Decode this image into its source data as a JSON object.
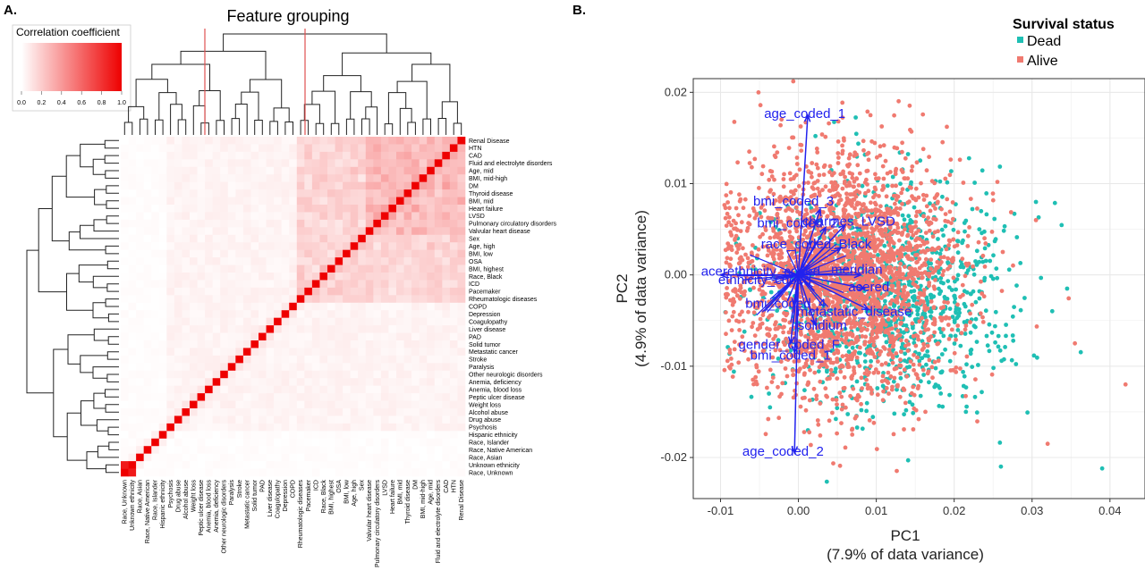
{
  "colors": {
    "heat_low": "#ffffff",
    "heat_high": "#ee0000",
    "dead": "#1fbfb4",
    "alive": "#f07a70",
    "vector": "#2222ee",
    "grid": "#e8e8e8",
    "panel_border": "#333333"
  },
  "chart_data": [
    {
      "panel": "A.",
      "type": "heatmap",
      "title": "Feature grouping",
      "colorbar": {
        "title": "Correlation coefficient",
        "ticks": [
          "0.0",
          "0.2",
          "0.4",
          "0.6",
          "0.8",
          "1.0"
        ],
        "range": [
          0,
          1
        ]
      },
      "row_labels": [
        "Renal Disease",
        "HTN",
        "CAD",
        "Fluid and electrolyte disorders",
        "Age, mid",
        "BMI, mid-high",
        "DM",
        "Thyroid disease",
        "BMI, mid",
        "Heart failure",
        "LVSD",
        "Pulmonary circulatory disorders",
        "Valvular heart disease",
        "Sex",
        "Age, high",
        "BMI, low",
        "OSA",
        "BMI, highest",
        "Race, Black",
        "ICD",
        "Pacemaker",
        "Rheumatologic diseases",
        "COPD",
        "Depression",
        "Coagulopathy",
        "Liver disease",
        "PAD",
        "Solid tumor",
        "Metastatic cancer",
        "Stroke",
        "Paralysis",
        "Other neurologic disorders",
        "Anemia, deficiency",
        "Anemia, blood loss",
        "Peptic ulcer disease",
        "Weight loss",
        "Alcohol abuse",
        "Drug abuse",
        "Psychosis",
        "Hispanic ethnicity",
        "Race, Islander",
        "Race, Native American",
        "Race, Asian",
        "Unknown ethnicity",
        "Race, Unknown"
      ],
      "col_labels": [
        "Race, Unknown",
        "Unknown ethnicity",
        "Race, Asian",
        "Race, Native American",
        "Race, Islander",
        "Hispanic ethnicity",
        "Psychosis",
        "Drug abuse",
        "Alcohol abuse",
        "Weight loss",
        "Peptic ulcer disease",
        "Anemia, blood loss",
        "Anemia, deficiency",
        "Other neurologic disorders",
        "Paralysis",
        "Stroke",
        "Metastatic cancer",
        "Solid tumor",
        "PAD",
        "Liver disease",
        "Coagulopathy",
        "Depression",
        "COPD",
        "Rheumatologic diseases",
        "Pacemaker",
        "ICD",
        "Race, Black",
        "BMI, highest",
        "OSA",
        "BMI, low",
        "Age, high",
        "Sex",
        "Valvular heart disease",
        "Pulmonary circulatory disorders",
        "LVSD",
        "Heart failure",
        "BMI, mid",
        "Thyroid disease",
        "DM",
        "BMI, mid-high",
        "Age, mid",
        "Fluid and electrolyte disorders",
        "CAD",
        "HTN",
        "Renal Disease"
      ],
      "strong_pairs": [
        {
          "a": "Race, Unknown",
          "b": "Unknown ethnicity",
          "value": 0.9
        },
        {
          "a": "Renal Disease",
          "b": "HTN",
          "value": 0.3
        },
        {
          "a": "Age, mid",
          "b": "Age, high",
          "value": 0.25
        },
        {
          "a": "CAD",
          "b": "Heart failure",
          "value": 0.22
        }
      ]
    },
    {
      "panel": "B.",
      "type": "scatter",
      "xlabel_line1": "PC1",
      "xlabel_line2": "(7.9% of data variance)",
      "ylabel_line1": "PC2",
      "ylabel_line2": "(4.9% of data variance)",
      "xlim": [
        -0.0135,
        0.0445
      ],
      "ylim": [
        -0.0245,
        0.0215
      ],
      "x_ticks": [
        -0.01,
        0.0,
        0.01,
        0.02,
        0.03,
        0.04
      ],
      "x_tick_labels": [
        "-0.01",
        "0.00",
        "0.01",
        "0.02",
        "0.03",
        "0.04"
      ],
      "y_ticks": [
        -0.02,
        -0.01,
        0.0,
        0.01,
        0.02
      ],
      "y_tick_labels": [
        "-0.02",
        "-0.01",
        "0.00",
        "0.01",
        "0.02"
      ],
      "grid": true,
      "legend": {
        "position": "top-right",
        "title": "Survival status",
        "items": [
          {
            "name": "Dead",
            "color": "#1fbfb4"
          },
          {
            "name": "Alive",
            "color": "#f07a70"
          }
        ]
      },
      "point_cloud": {
        "alive": {
          "n": 2600,
          "center": [
            0.006,
            0.0
          ],
          "spread": [
            0.0072,
            0.0065
          ]
        },
        "dead": {
          "n": 1100,
          "center": [
            0.0115,
            -0.002
          ],
          "spread": [
            0.0075,
            0.006
          ]
        },
        "outliers": [
          [
            0.042,
            -0.012
          ],
          [
            0.039,
            -0.0212
          ],
          [
            0.0355,
            -0.0075
          ],
          [
            0.0345,
            -0.0015
          ],
          [
            0.032,
            -0.0185
          ],
          [
            0.026,
            -0.021
          ],
          [
            0.0305,
            0.006
          ]
        ]
      },
      "vectors": [
        {
          "label": "age_coded_1",
          "x": 0.0012,
          "y": 0.0175
        },
        {
          "label": "age_coded_2",
          "x": -0.0005,
          "y": -0.0195
        },
        {
          "label": "bmi_coded_3",
          "x": 0.0028,
          "y": 0.0072
        },
        {
          "label": "bmi_coded_2",
          "x": 0.0035,
          "y": 0.0052
        },
        {
          "label": "charmes_LVSD",
          "x": 0.006,
          "y": 0.0055
        },
        {
          "label": "race_coded_Black",
          "x": 0.0055,
          "y": 0.003
        },
        {
          "label": "ethnicity_coded",
          "x": -0.01,
          "y": 0.0
        },
        {
          "label": "meridian",
          "x": 0.008,
          "y": 0.0
        },
        {
          "label": "acered",
          "x": 0.0085,
          "y": -0.0015
        },
        {
          "label": "bmi_coded_1",
          "x": -0.0005,
          "y": -0.0085
        },
        {
          "label": "gender_coded_F",
          "x": -0.001,
          "y": -0.0075
        },
        {
          "label": "solidium",
          "x": 0.0022,
          "y": -0.0055
        },
        {
          "label": "metastatic_disease",
          "x": 0.009,
          "y": -0.0038
        },
        {
          "label": "bmi_coded_4",
          "x": -0.0006,
          "y": -0.0033
        }
      ],
      "vector_labels": [
        {
          "text": "age_coded_1",
          "x": -0.0044,
          "y": 0.0172
        },
        {
          "text": "age_coded_2",
          "x": -0.0072,
          "y": -0.0198
        },
        {
          "text": "bmi_coded_3",
          "x": -0.0058,
          "y": 0.0076
        },
        {
          "text": "bmi_coded_2",
          "x": -0.0053,
          "y": 0.0052
        },
        {
          "text": "charmes_LVSD",
          "x": 0.0005,
          "y": 0.0054
        },
        {
          "text": "race_coded_Black",
          "x": -0.0048,
          "y": 0.0029
        },
        {
          "text": "acerethnicity_coded",
          "x": -0.0125,
          "y": -0.0001
        },
        {
          "text": "ethnicity_coded",
          "x": -0.0103,
          "y": -0.001
        },
        {
          "text": "meridian",
          "x": 0.0042,
          "y": 0.0001
        },
        {
          "text": "acered",
          "x": 0.0064,
          "y": -0.0018
        },
        {
          "text": "bmi_coded_4",
          "x": -0.0068,
          "y": -0.0036
        },
        {
          "text": "metastatic_disease",
          "x": -0.0002,
          "y": -0.0045
        },
        {
          "text": "solidium",
          "x": -0.0001,
          "y": -0.006
        },
        {
          "text": "gender_coded_F",
          "x": -0.0077,
          "y": -0.0081
        },
        {
          "text": "bmi_coded_1",
          "x": -0.0062,
          "y": -0.0093
        }
      ]
    }
  ]
}
